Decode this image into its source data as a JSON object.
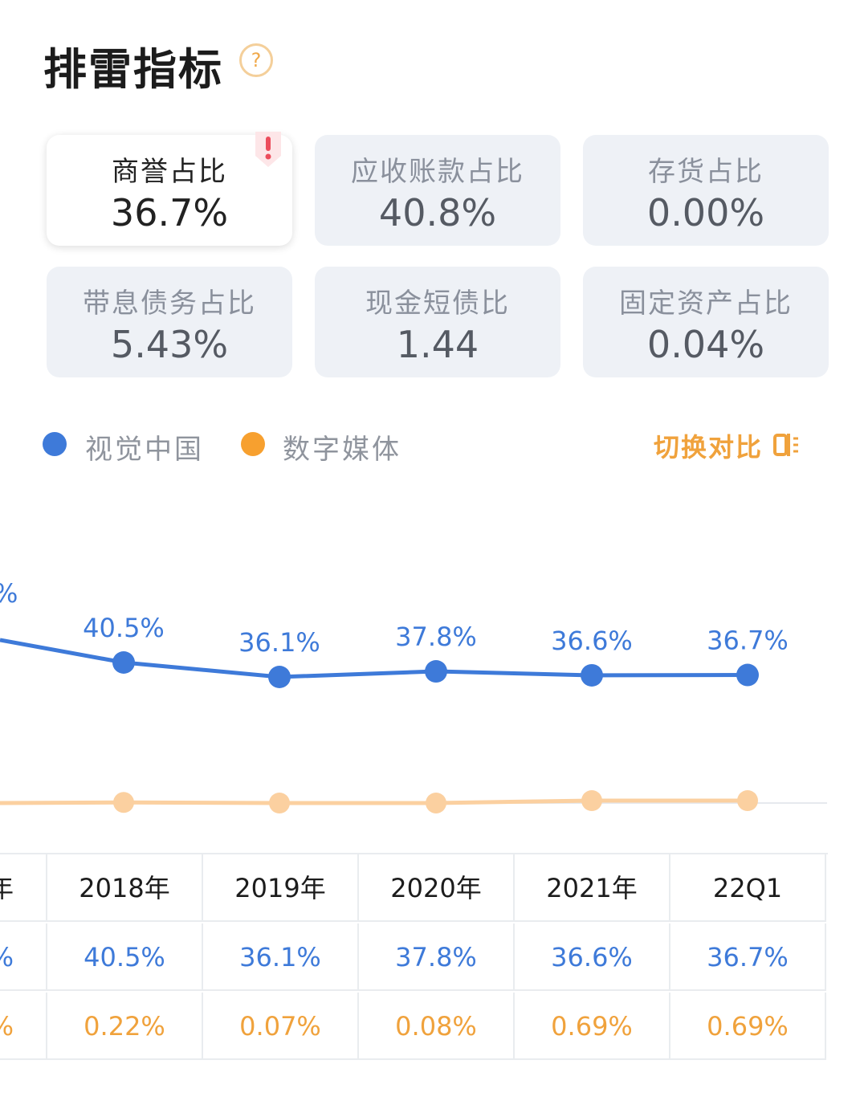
{
  "header": {
    "title": "排雷指标",
    "help_icon": "question-mark-icon",
    "help_glyph": "?"
  },
  "metrics": [
    {
      "label": "商誉占比",
      "value": "36.7%",
      "active": true,
      "warning": true
    },
    {
      "label": "应收账款占比",
      "value": "40.8%"
    },
    {
      "label": "存货占比",
      "value": "0.00%"
    },
    {
      "label": "带息债务占比",
      "value": "5.43%"
    },
    {
      "label": "现金短债比",
      "value": "1.44"
    },
    {
      "label": "固定资产占比",
      "value": "0.04%"
    }
  ],
  "legend": {
    "items": [
      {
        "name": "视觉中国",
        "color": "#3e7ad9"
      },
      {
        "name": "数字媒体",
        "color": "#f7a02f"
      }
    ],
    "switch_label": "切换对比"
  },
  "chart_data": {
    "type": "line",
    "categories": [
      "2018年",
      "2019年",
      "2020年",
      "2021年",
      "22Q1"
    ],
    "series": [
      {
        "name": "视觉中国",
        "color": "#3e7ad9",
        "values": [
          40.5,
          36.1,
          37.8,
          36.6,
          36.7
        ],
        "labels": [
          "40.5%",
          "36.1%",
          "37.8%",
          "36.6%",
          "36.7%"
        ]
      },
      {
        "name": "数字媒体",
        "color": "#fbd0a0",
        "values": [
          0.22,
          0.07,
          0.08,
          0.69,
          0.69
        ],
        "labels": [
          "0.22%",
          "0.07%",
          "0.08%",
          "0.69%",
          "0.69%"
        ]
      }
    ],
    "cutoff_left": {
      "category": "年",
      "series_values": [
        null,
        null
      ],
      "partial_label": "%"
    }
  },
  "table": {
    "partial_first_column": [
      "年",
      "%",
      "%"
    ],
    "headers": [
      "2018年",
      "2019年",
      "2020年",
      "2021年",
      "22Q1"
    ],
    "rows": [
      [
        "40.5%",
        "36.1%",
        "37.8%",
        "36.6%",
        "36.7%"
      ],
      [
        "0.22%",
        "0.07%",
        "0.08%",
        "0.69%",
        "0.69%"
      ]
    ]
  }
}
